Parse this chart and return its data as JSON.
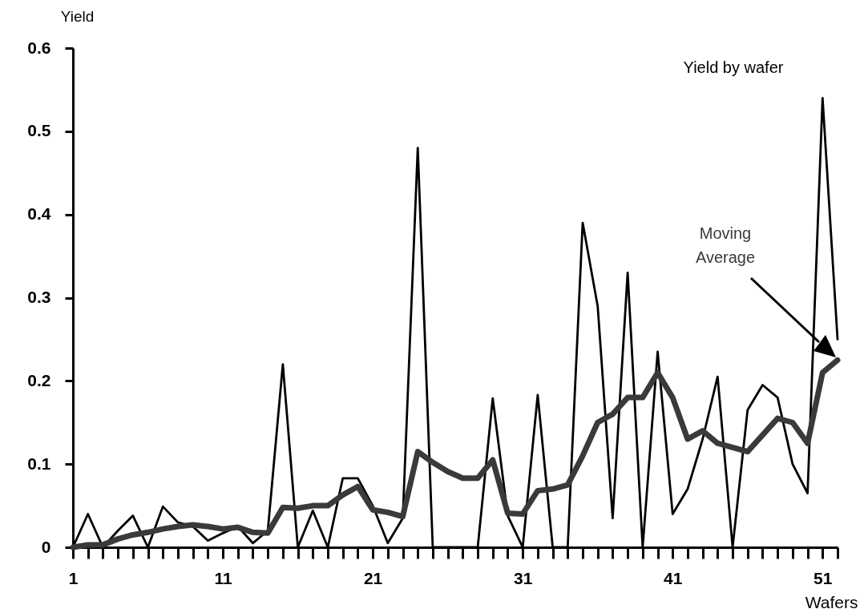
{
  "chart_data": {
    "type": "line",
    "xlabel": "Wafers",
    "ylabel": "Yield",
    "x": [
      1,
      2,
      3,
      4,
      5,
      6,
      7,
      8,
      9,
      10,
      11,
      12,
      13,
      14,
      15,
      16,
      17,
      18,
      19,
      20,
      21,
      22,
      23,
      24,
      25,
      26,
      27,
      28,
      29,
      30,
      31,
      32,
      33,
      34,
      35,
      36,
      37,
      38,
      39,
      40,
      41,
      42,
      43,
      44,
      45,
      46,
      47,
      48,
      49,
      50,
      51,
      52
    ],
    "series": [
      {
        "name": "Yield by wafer",
        "color": "#000000",
        "values": [
          0,
          0.04,
          0,
          0.02,
          0.038,
          0,
          0.049,
          0.03,
          0.025,
          0.008,
          0.017,
          0.025,
          0.005,
          0.02,
          0.22,
          0,
          0.044,
          0,
          0.083,
          0.083,
          0.05,
          0.005,
          0.035,
          0.48,
          0,
          0,
          0,
          0,
          0.179,
          0.038,
          0,
          0.183,
          0,
          0,
          0.39,
          0.29,
          0.035,
          0.33,
          0,
          0.235,
          0.04,
          0.07,
          0.13,
          0.205,
          0,
          0.165,
          0.195,
          0.18,
          0.1,
          0.065,
          0.54,
          0.25
        ]
      },
      {
        "name": "Moving Average",
        "color": "#3a3a3a",
        "values": [
          0,
          0.003,
          0.003,
          0.01,
          0.015,
          0.018,
          0.022,
          0.025,
          0.027,
          0.025,
          0.022,
          0.024,
          0.018,
          0.017,
          0.048,
          0.047,
          0.05,
          0.05,
          0.063,
          0.073,
          0.045,
          0.042,
          0.037,
          0.115,
          0.102,
          0.091,
          0.083,
          0.083,
          0.105,
          0.041,
          0.04,
          0.068,
          0.07,
          0.075,
          0.11,
          0.15,
          0.16,
          0.18,
          0.18,
          0.21,
          0.18,
          0.13,
          0.14,
          0.125,
          0.12,
          0.115,
          0.135,
          0.155,
          0.15,
          0.125,
          0.21,
          0.225
        ]
      }
    ],
    "xlim": [
      1,
      52
    ],
    "xticks": [
      1,
      {
        "value": 2,
        "label": null
      },
      {
        "value": 3,
        "label": null
      },
      {
        "value": 4,
        "label": null
      },
      {
        "value": 5,
        "label": null
      },
      {
        "value": 6,
        "label": null
      },
      {
        "value": 7,
        "label": null
      },
      {
        "value": 8,
        "label": null
      },
      {
        "value": 9,
        "label": null
      },
      {
        "value": 10,
        "label": null
      },
      11,
      {
        "value": 12,
        "label": null
      },
      {
        "value": 13,
        "label": null
      },
      {
        "value": 14,
        "label": null
      },
      {
        "value": 15,
        "label": null
      },
      {
        "value": 16,
        "label": null
      },
      {
        "value": 17,
        "label": null
      },
      {
        "value": 18,
        "label": null
      },
      {
        "value": 19,
        "label": null
      },
      {
        "value": 20,
        "label": null
      },
      21,
      {
        "value": 22,
        "label": null
      },
      {
        "value": 23,
        "label": null
      },
      {
        "value": 24,
        "label": null
      },
      {
        "value": 25,
        "label": null
      },
      {
        "value": 26,
        "label": null
      },
      {
        "value": 27,
        "label": null
      },
      {
        "value": 28,
        "label": null
      },
      {
        "value": 29,
        "label": null
      },
      {
        "value": 30,
        "label": null
      },
      31,
      {
        "value": 32,
        "label": null
      },
      {
        "value": 33,
        "label": null
      },
      {
        "value": 34,
        "label": null
      },
      {
        "value": 35,
        "label": null
      },
      {
        "value": 36,
        "label": null
      },
      {
        "value": 37,
        "label": null
      },
      {
        "value": 38,
        "label": null
      },
      {
        "value": 39,
        "label": null
      },
      {
        "value": 40,
        "label": null
      },
      41,
      {
        "value": 42,
        "label": null
      },
      {
        "value": 43,
        "label": null
      },
      {
        "value": 44,
        "label": null
      },
      {
        "value": 45,
        "label": null
      },
      {
        "value": 46,
        "label": null
      },
      {
        "value": 47,
        "label": null
      },
      {
        "value": 48,
        "label": null
      },
      {
        "value": 49,
        "label": null
      },
      {
        "value": 50,
        "label": null
      },
      51,
      {
        "value": 52,
        "label": null
      }
    ],
    "ylim": [
      0,
      0.6
    ],
    "yticks": [
      0,
      0.1,
      0.2,
      0.3,
      0.4,
      0.5,
      0.6
    ],
    "grid": false,
    "legend": false,
    "marker": "none",
    "line_style": "solid"
  }
}
